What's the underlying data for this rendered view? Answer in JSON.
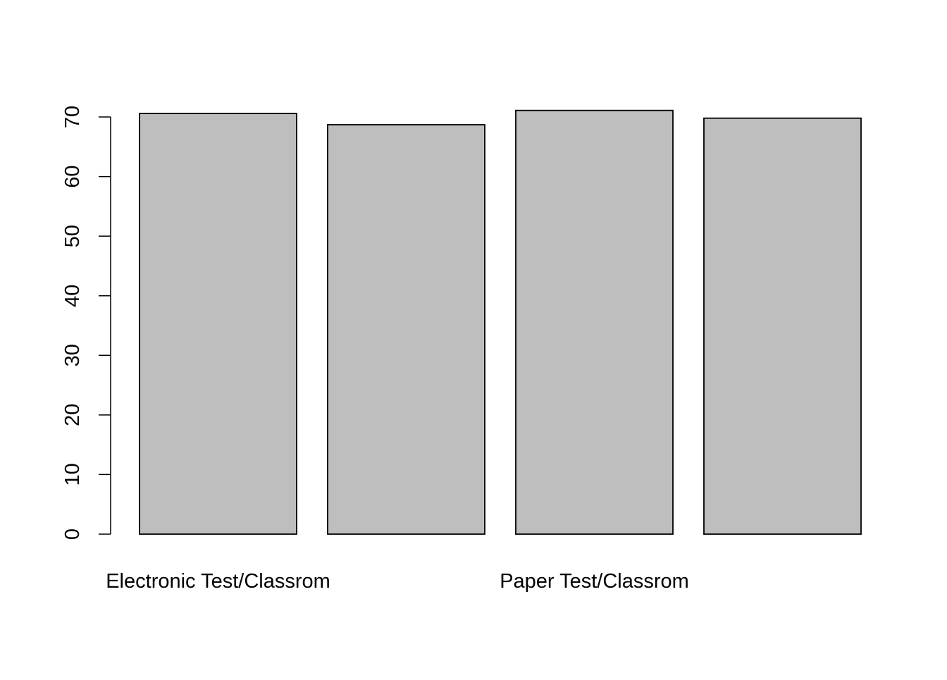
{
  "chart_data": {
    "type": "bar",
    "categories": [
      "Electronic Test/Classrom",
      "",
      "Paper Test/Classrom",
      ""
    ],
    "values": [
      70.6,
      68.7,
      71.1,
      69.8
    ],
    "title": "",
    "xlabel": "",
    "ylabel": "",
    "ylim": [
      0,
      70
    ],
    "yticks": [
      0,
      10,
      20,
      30,
      40,
      50,
      60,
      70
    ],
    "grid": false,
    "bar_color": "#bebebe",
    "edge_color": "#000000"
  }
}
